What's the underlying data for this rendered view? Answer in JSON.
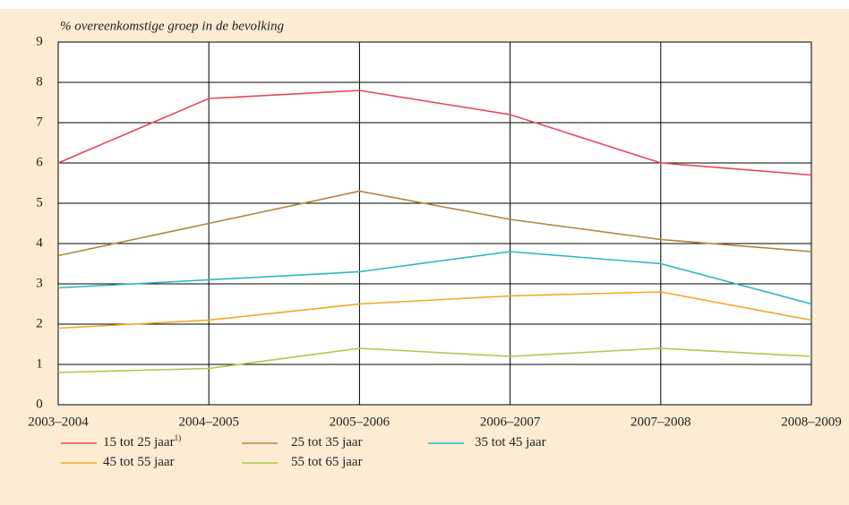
{
  "chart_data": {
    "type": "line",
    "y_label": "% overeenkomstige groep in de bevolking",
    "categories": [
      "2003–2004",
      "2004–2005",
      "2005–2006",
      "2006–2007",
      "2007–2008",
      "2008–2009"
    ],
    "ylim": [
      0,
      9
    ],
    "yticks": [
      0,
      1,
      2,
      3,
      4,
      5,
      6,
      7,
      8,
      9
    ],
    "grid": true,
    "series": [
      {
        "name": "15 tot 25 jaar",
        "note": "1)",
        "color": "#e8475f",
        "values": [
          6.0,
          7.6,
          7.8,
          7.2,
          6.0,
          5.7
        ]
      },
      {
        "name": "25 tot 35 jaar",
        "color": "#b5833a",
        "values": [
          3.7,
          4.5,
          5.3,
          4.6,
          4.1,
          3.8
        ]
      },
      {
        "name": "35 tot 45 jaar",
        "color": "#2bb5c5",
        "values": [
          2.9,
          3.1,
          3.3,
          3.8,
          3.5,
          2.5
        ]
      },
      {
        "name": "45 tot 55 jaar",
        "color": "#f5a623",
        "values": [
          1.9,
          2.1,
          2.5,
          2.7,
          2.8,
          2.1
        ]
      },
      {
        "name": "55 tot 65 jaar",
        "color": "#a8cc4a",
        "values": [
          0.8,
          0.9,
          1.4,
          1.2,
          1.4,
          1.2
        ]
      }
    ]
  }
}
